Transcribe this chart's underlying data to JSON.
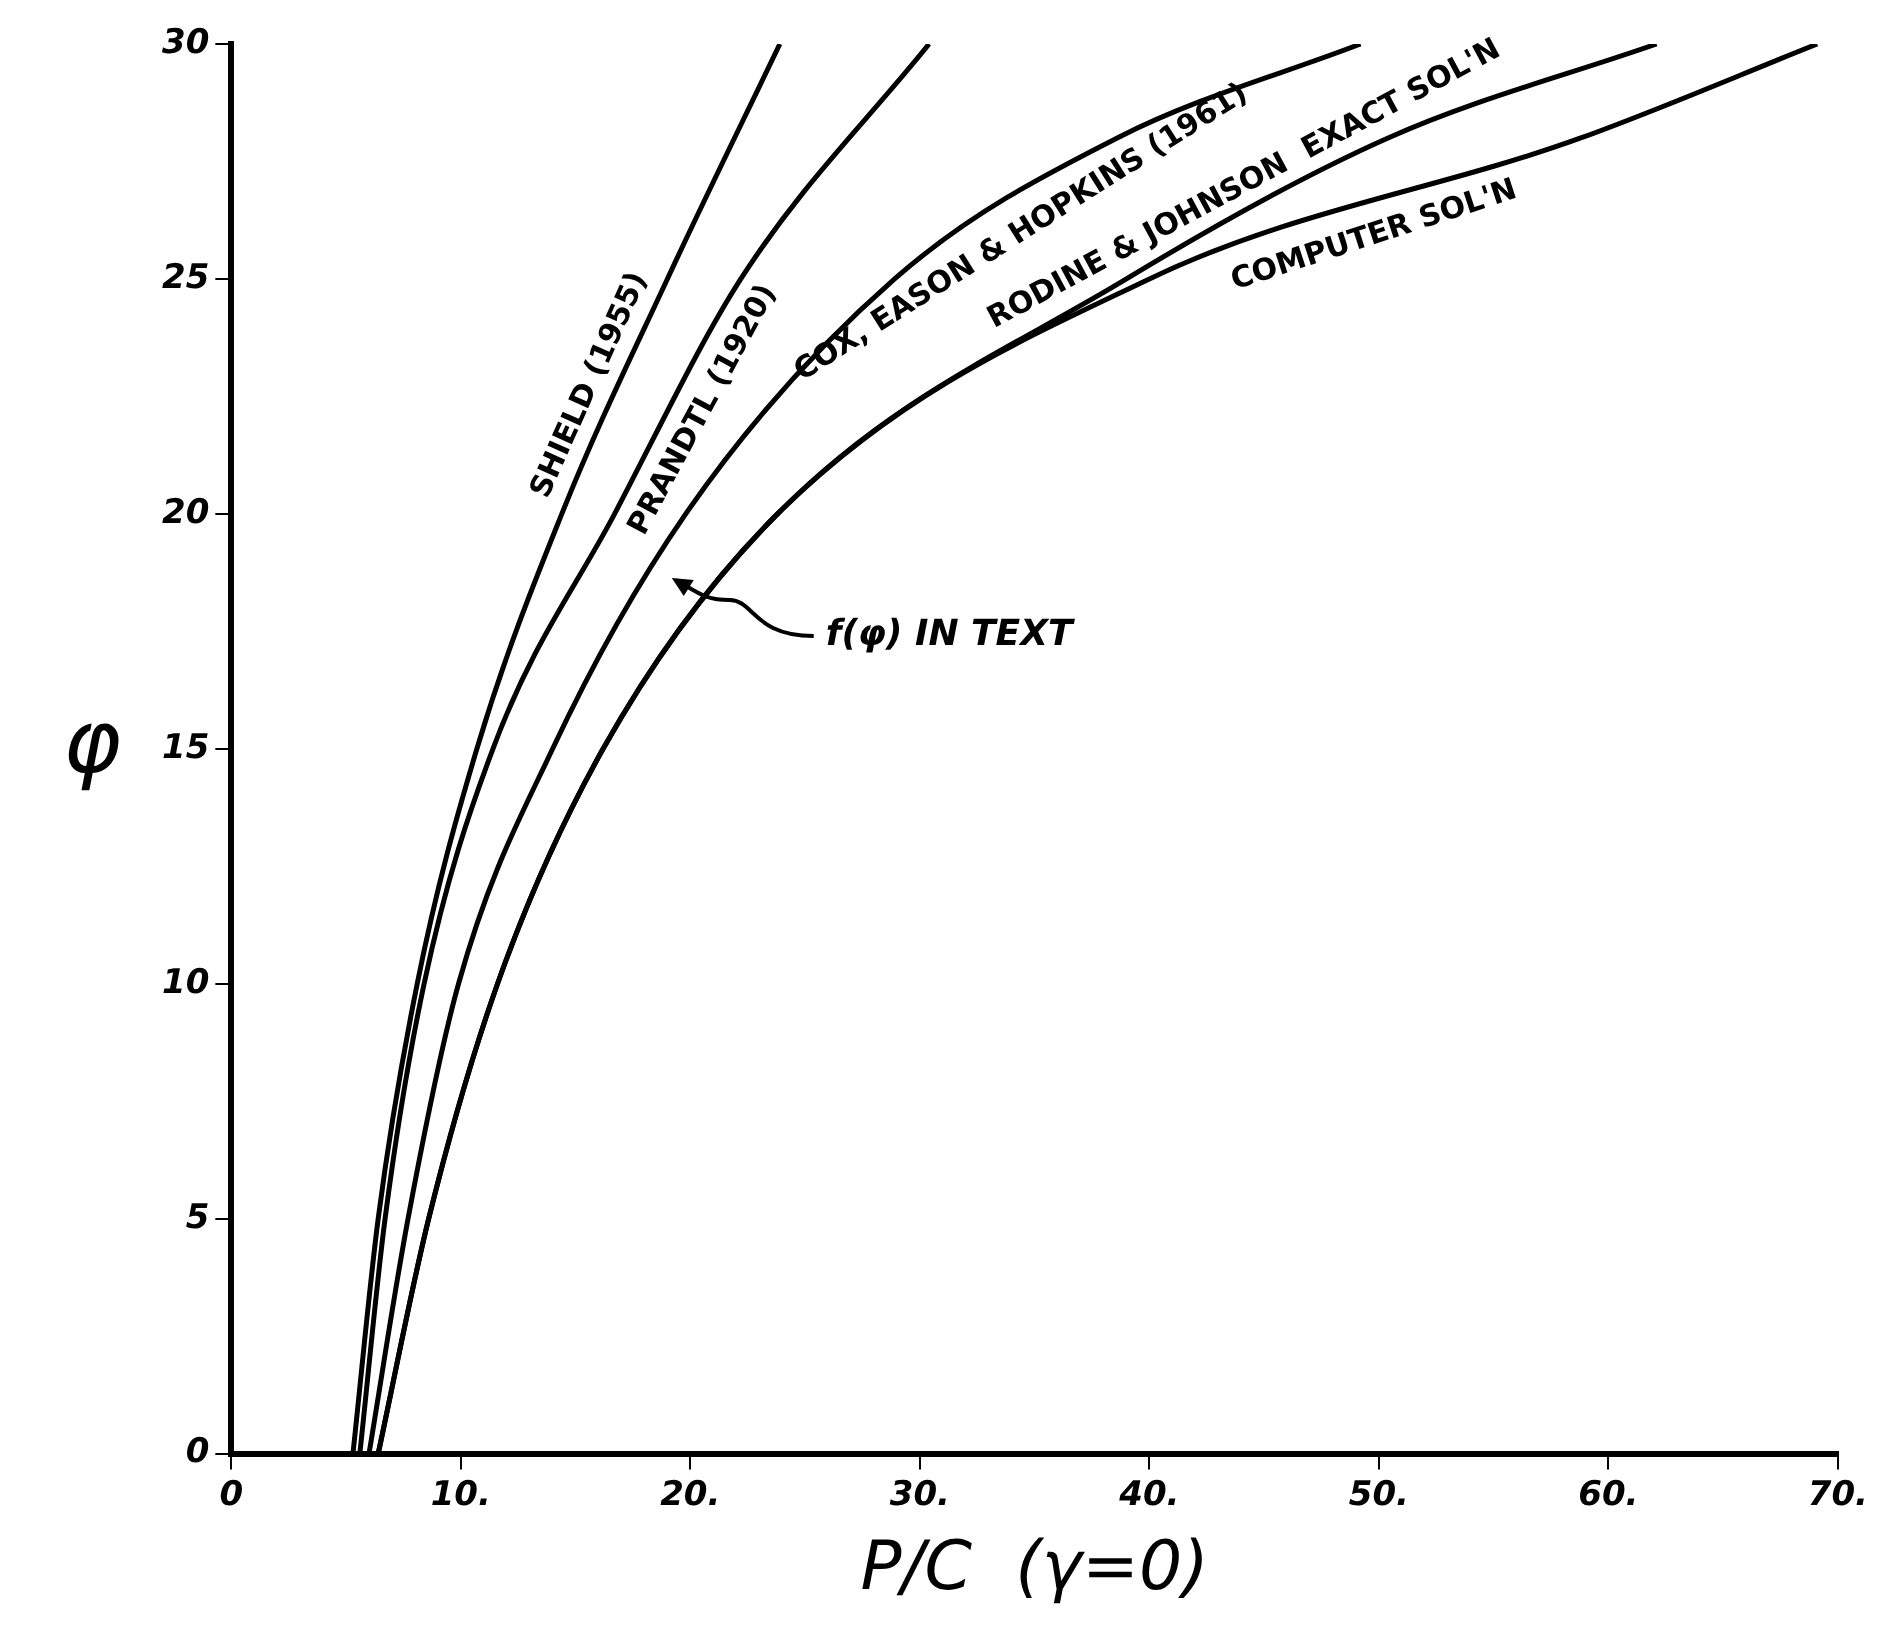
{
  "chart_data": {
    "type": "line",
    "xlabel": "P/C  (γ=0)",
    "ylabel": "φ",
    "xlim": [
      0,
      70
    ],
    "ylim": [
      0,
      30
    ],
    "xticks": [
      0,
      {
        "value": 10,
        "label": "10."
      },
      {
        "value": 20,
        "label": "20."
      },
      {
        "value": 30,
        "label": "30."
      },
      {
        "value": 40,
        "label": "40."
      },
      {
        "value": 50,
        "label": "50."
      },
      {
        "value": 60,
        "label": "60."
      },
      {
        "value": 70,
        "label": "70."
      }
    ],
    "yticks": [
      0,
      5,
      10,
      15,
      20,
      25,
      30
    ],
    "grid": false,
    "marker": "none",
    "line_style": "solid",
    "series": [
      {
        "name": "SHIELD (1955)",
        "color": "#000000",
        "x": [
          5.3,
          6.4,
          8.1,
          10.7,
          14.4,
          19.0,
          23.9
        ],
        "values": [
          0,
          5,
          10,
          15,
          20,
          25,
          30
        ]
      },
      {
        "name": "PRANDTL (1920)",
        "color": "#000000",
        "x": [
          5.6,
          6.7,
          8.4,
          11.4,
          16.7,
          22.2,
          30.4
        ],
        "values": [
          0,
          5,
          10,
          15,
          20,
          25,
          30
        ]
      },
      {
        "name": "COX, EASON & HOPKINS (1961)",
        "color": "#000000",
        "x": [
          6.0,
          7.7,
          9.9,
          14.0,
          19.8,
          28.9,
          38.6,
          49.2
        ],
        "values": [
          0,
          5,
          10,
          15,
          20,
          25,
          28,
          30
        ]
      },
      {
        "name": "RODINE & JOHNSON  EXACT SOL'N",
        "color": "#000000",
        "x": [
          6.4,
          8.6,
          11.6,
          16.2,
          23.8,
          39.0,
          50.4,
          62.1
        ],
        "values": [
          0,
          5,
          10,
          15,
          20,
          25,
          28,
          30
        ]
      },
      {
        "name": "COMPUTER SOL'N",
        "color": "#000000",
        "x": [
          6.4,
          8.6,
          11.6,
          16.2,
          23.8,
          40.0,
          58.8,
          69.1
        ],
        "values": [
          0,
          5,
          10,
          15,
          20,
          25,
          28,
          30
        ]
      }
    ],
    "annotations": [
      "f(φ) IN TEXT"
    ]
  }
}
